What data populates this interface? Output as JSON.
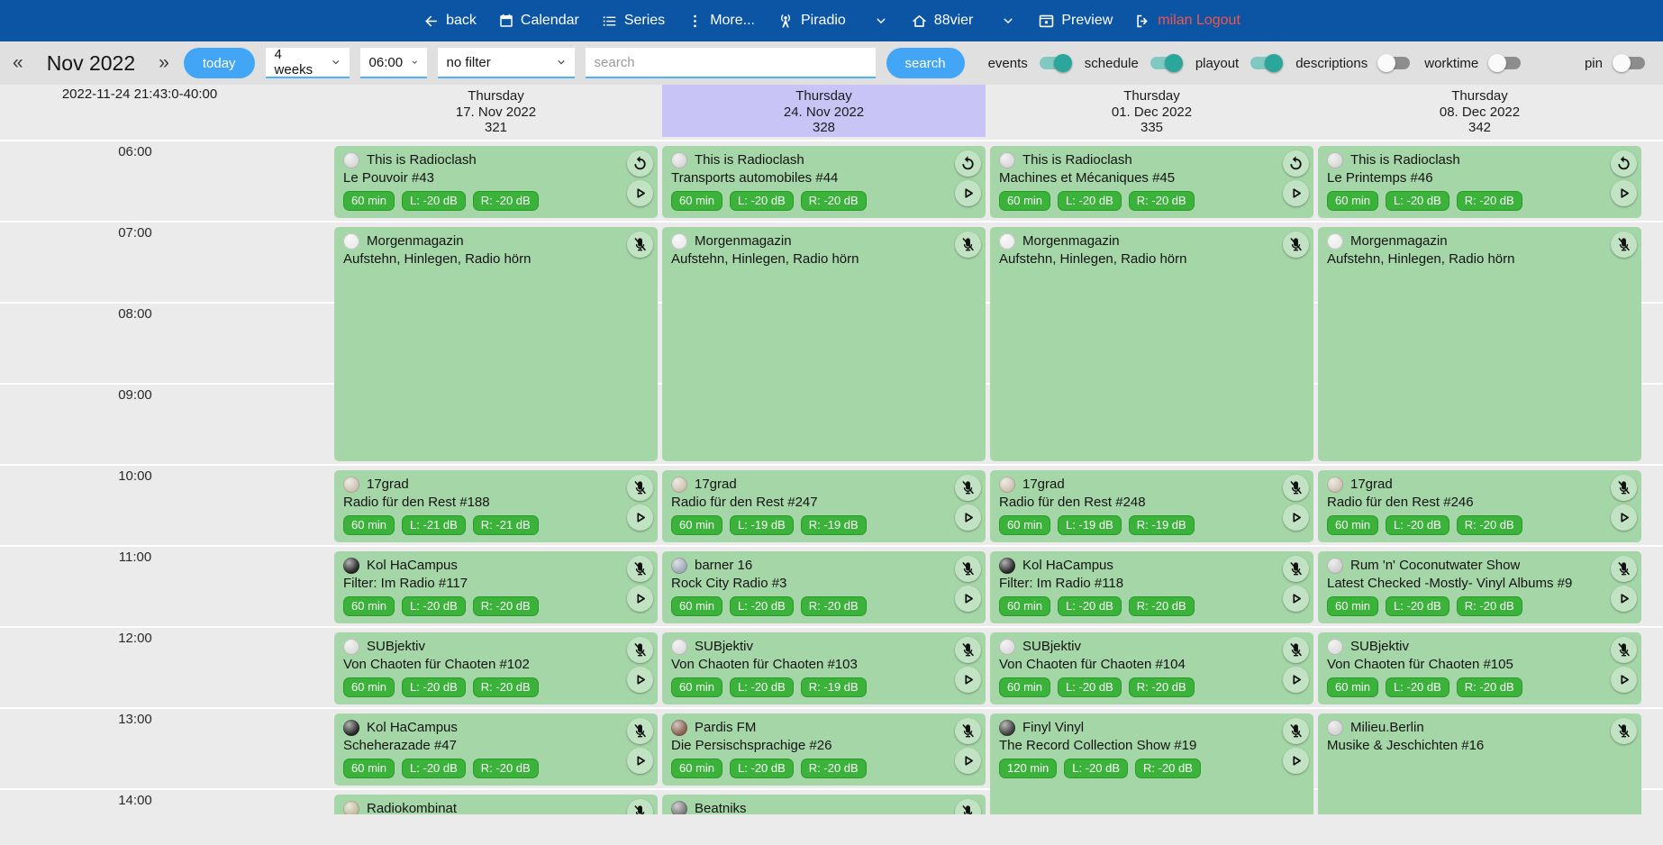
{
  "navbar": {
    "back": "back",
    "calendar": "Calendar",
    "series": "Series",
    "more": "More...",
    "station": "Piradio",
    "channel": "88vier",
    "preview": "Preview",
    "logout": "milan Logout",
    "colors": {
      "bg": "#0b55a4",
      "logout_text": "#f4544b"
    }
  },
  "toolbar": {
    "prev": "«",
    "month": "Nov 2022",
    "next": "»",
    "today_button": "today",
    "range_select": "4 weeks",
    "time_select": "06:00",
    "filter_select": "no filter",
    "search_placeholder": "search",
    "search_button": "search",
    "toggles": [
      {
        "label": "events",
        "on": true
      },
      {
        "label": "schedule",
        "on": true
      },
      {
        "label": "playout",
        "on": true
      },
      {
        "label": "descriptions",
        "on": false
      },
      {
        "label": "worktime",
        "on": false
      }
    ],
    "pin_toggle": {
      "label": "pin",
      "on": false
    },
    "colors": {
      "button": "#42a5f5",
      "toggle_on": "#2aa69a",
      "underline": "#4db3f3"
    }
  },
  "calendar": {
    "timestamp": "2022-11-24 21:43:0-40:00",
    "hours": [
      "06:00",
      "07:00",
      "08:00",
      "09:00",
      "10:00",
      "11:00",
      "12:00",
      "13:00",
      "14:00"
    ],
    "colors": {
      "card": "#a5d6a7",
      "badge": "#3bb33b",
      "selected_day": "#c8c5f6",
      "background": "#ebebeb"
    },
    "columns": [
      {
        "weekday": "Thursday",
        "date": "17. Nov 2022",
        "day_number": "321",
        "highlighted": false,
        "events": [
          {
            "start_offset": 0,
            "duration_hours": 1,
            "title": "This is Radioclash",
            "subtitle": "Le Pouvoir #43",
            "badges": [
              "60 min",
              "L: -20 dB",
              "R: -20 dB"
            ],
            "icons": [
              "replay",
              "play"
            ],
            "avatar_color": "#d8d8d8"
          },
          {
            "start_offset": 1,
            "duration_hours": 3,
            "title": "Morgenmagazin",
            "subtitle": "Aufstehn, Hinlegen, Radio hörn",
            "badges": [],
            "icons": [
              "mic-off"
            ],
            "avatar_color": "#ececec"
          },
          {
            "start_offset": 4,
            "duration_hours": 1,
            "title": "17grad",
            "subtitle": "Radio für den Rest #188",
            "badges": [
              "60 min",
              "L: -21 dB",
              "R: -21 dB"
            ],
            "icons": [
              "mic-off",
              "play"
            ],
            "avatar_color": "#cdc3b2"
          },
          {
            "start_offset": 5,
            "duration_hours": 1,
            "title": "Kol HaCampus",
            "subtitle": "Filter: Im Radio #117",
            "badges": [
              "60 min",
              "L: -20 dB",
              "R: -20 dB"
            ],
            "icons": [
              "mic-off",
              "play"
            ],
            "avatar_color": "#262626"
          },
          {
            "start_offset": 6,
            "duration_hours": 1,
            "title": "SUBjektiv",
            "subtitle": "Von Chaoten für Chaoten #102",
            "badges": [
              "60 min",
              "L: -20 dB",
              "R: -20 dB"
            ],
            "icons": [
              "mic-off",
              "play"
            ],
            "avatar_color": "#dddddd"
          },
          {
            "start_offset": 7,
            "duration_hours": 1,
            "title": "Kol HaCampus",
            "subtitle": "Scheherazade #47",
            "badges": [
              "60 min",
              "L: -20 dB",
              "R: -20 dB"
            ],
            "icons": [
              "mic-off",
              "play"
            ],
            "avatar_color": "#262626"
          },
          {
            "start_offset": 8,
            "duration_hours": 1,
            "title": "Radiokombinat",
            "subtitle": "",
            "badges": [],
            "icons": [
              "mic-off"
            ],
            "avatar_color": "#c2bb9f"
          }
        ]
      },
      {
        "weekday": "Thursday",
        "date": "24. Nov 2022",
        "day_number": "328",
        "highlighted": true,
        "events": [
          {
            "start_offset": 0,
            "duration_hours": 1,
            "title": "This is Radioclash",
            "subtitle": "Transports automobiles #44",
            "badges": [
              "60 min",
              "L: -20 dB",
              "R: -20 dB"
            ],
            "icons": [
              "replay",
              "play"
            ],
            "avatar_color": "#d8d8d8"
          },
          {
            "start_offset": 1,
            "duration_hours": 3,
            "title": "Morgenmagazin",
            "subtitle": "Aufstehn, Hinlegen, Radio hörn",
            "badges": [],
            "icons": [
              "mic-off"
            ],
            "avatar_color": "#ececec"
          },
          {
            "start_offset": 4,
            "duration_hours": 1,
            "title": "17grad",
            "subtitle": "Radio für den Rest #247",
            "badges": [
              "60 min",
              "L: -19 dB",
              "R: -19 dB"
            ],
            "icons": [
              "mic-off",
              "play"
            ],
            "avatar_color": "#cdc3b2"
          },
          {
            "start_offset": 5,
            "duration_hours": 1,
            "title": "barner 16",
            "subtitle": "Rock City Radio #3",
            "badges": [
              "60 min",
              "L: -20 dB",
              "R: -20 dB"
            ],
            "icons": [
              "mic-off",
              "play"
            ],
            "avatar_color": "#9fa8b5"
          },
          {
            "start_offset": 6,
            "duration_hours": 1,
            "title": "SUBjektiv",
            "subtitle": "Von Chaoten für Chaoten #103",
            "badges": [
              "60 min",
              "L: -20 dB",
              "R: -19 dB"
            ],
            "icons": [
              "mic-off",
              "play"
            ],
            "avatar_color": "#dddddd"
          },
          {
            "start_offset": 7,
            "duration_hours": 1,
            "title": "Pardis FM",
            "subtitle": "Die Persischsprachige #26",
            "badges": [
              "60 min",
              "L: -20 dB",
              "R: -20 dB"
            ],
            "icons": [
              "mic-off",
              "play"
            ],
            "avatar_color": "#8a5f52"
          },
          {
            "start_offset": 8,
            "duration_hours": 1,
            "title": "Beatniks",
            "subtitle": "",
            "badges": [],
            "icons": [
              "mic-off"
            ],
            "avatar_color": "#777777"
          }
        ]
      },
      {
        "weekday": "Thursday",
        "date": "01. Dec 2022",
        "day_number": "335",
        "highlighted": false,
        "events": [
          {
            "start_offset": 0,
            "duration_hours": 1,
            "title": "This is Radioclash",
            "subtitle": "Machines et Mécaniques #45",
            "badges": [
              "60 min",
              "L: -20 dB",
              "R: -20 dB"
            ],
            "icons": [
              "replay",
              "play"
            ],
            "avatar_color": "#d8d8d8"
          },
          {
            "start_offset": 1,
            "duration_hours": 3,
            "title": "Morgenmagazin",
            "subtitle": "Aufstehn, Hinlegen, Radio hörn",
            "badges": [],
            "icons": [
              "mic-off"
            ],
            "avatar_color": "#ececec"
          },
          {
            "start_offset": 4,
            "duration_hours": 1,
            "title": "17grad",
            "subtitle": "Radio für den Rest #248",
            "badges": [
              "60 min",
              "L: -19 dB",
              "R: -19 dB"
            ],
            "icons": [
              "mic-off",
              "play"
            ],
            "avatar_color": "#cdc3b2"
          },
          {
            "start_offset": 5,
            "duration_hours": 1,
            "title": "Kol HaCampus",
            "subtitle": "Filter: Im Radio #118",
            "badges": [
              "60 min",
              "L: -20 dB",
              "R: -20 dB"
            ],
            "icons": [
              "mic-off",
              "play"
            ],
            "avatar_color": "#262626"
          },
          {
            "start_offset": 6,
            "duration_hours": 1,
            "title": "SUBjektiv",
            "subtitle": "Von Chaoten für Chaoten #104",
            "badges": [
              "60 min",
              "L: -20 dB",
              "R: -20 dB"
            ],
            "icons": [
              "mic-off",
              "play"
            ],
            "avatar_color": "#dddddd"
          },
          {
            "start_offset": 7,
            "duration_hours": 2,
            "title": "Finyl Vinyl",
            "subtitle": "The Record Collection Show #19",
            "badges": [
              "120 min",
              "L: -20 dB",
              "R: -20 dB"
            ],
            "icons": [
              "mic-off",
              "play"
            ],
            "avatar_color": "#3c3c3c"
          }
        ]
      },
      {
        "weekday": "Thursday",
        "date": "08. Dec 2022",
        "day_number": "342",
        "highlighted": false,
        "events": [
          {
            "start_offset": 0,
            "duration_hours": 1,
            "title": "This is Radioclash",
            "subtitle": "Le Printemps #46",
            "badges": [
              "60 min",
              "L: -20 dB",
              "R: -20 dB"
            ],
            "icons": [
              "replay",
              "play"
            ],
            "avatar_color": "#d8d8d8"
          },
          {
            "start_offset": 1,
            "duration_hours": 3,
            "title": "Morgenmagazin",
            "subtitle": "Aufstehn, Hinlegen, Radio hörn",
            "badges": [],
            "icons": [
              "mic-off"
            ],
            "avatar_color": "#ececec"
          },
          {
            "start_offset": 4,
            "duration_hours": 1,
            "title": "17grad",
            "subtitle": "Radio für den Rest #246",
            "badges": [
              "60 min",
              "L: -20 dB",
              "R: -20 dB"
            ],
            "icons": [
              "mic-off",
              "play"
            ],
            "avatar_color": "#cdc3b2"
          },
          {
            "start_offset": 5,
            "duration_hours": 1,
            "title": "Rum 'n' Coconutwater Show",
            "subtitle": "Latest Checked -Mostly- Vinyl Albums #9",
            "badges": [
              "60 min",
              "L: -20 dB",
              "R: -20 dB"
            ],
            "icons": [
              "mic-off",
              "play"
            ],
            "avatar_color": "#cfcfcf"
          },
          {
            "start_offset": 6,
            "duration_hours": 1,
            "title": "SUBjektiv",
            "subtitle": "Von Chaoten für Chaoten #105",
            "badges": [
              "60 min",
              "L: -20 dB",
              "R: -20 dB"
            ],
            "icons": [
              "mic-off",
              "play"
            ],
            "avatar_color": "#dddddd"
          },
          {
            "start_offset": 7,
            "duration_hours": 2,
            "title": "Milieu.Berlin",
            "subtitle": "Musike & Jeschichten #16",
            "badges": [],
            "icons": [
              "mic-off"
            ],
            "avatar_color": "#d2d2d2"
          }
        ]
      }
    ]
  }
}
